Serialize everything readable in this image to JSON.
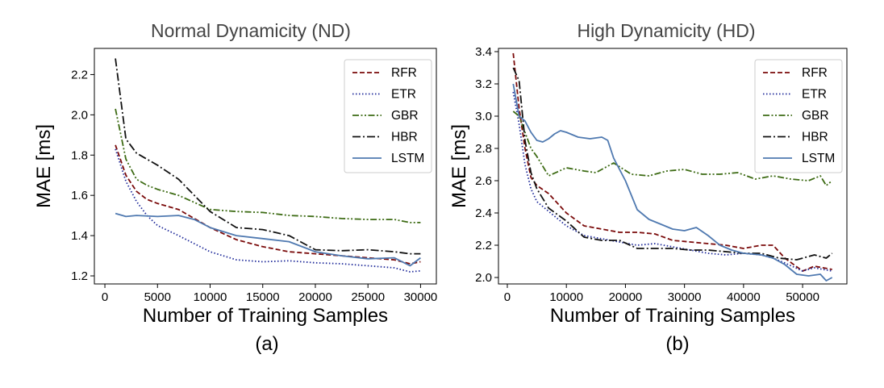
{
  "colors": {
    "RFR": "#7a0a0a",
    "ETR": "#1f2a9a",
    "GBR": "#3d6b14",
    "HBR": "#111111",
    "LSTM": "#4f79b0",
    "axis": "#000000",
    "title": "#444444"
  },
  "chart_data": [
    {
      "type": "line",
      "title": "Normal Dynamicity (ND)",
      "xlabel": "Number of Training Samples",
      "ylabel": "MAE [ms]",
      "caption": "(a)",
      "xlim": [
        -1000,
        31500
      ],
      "ylim": [
        1.16,
        2.33
      ],
      "xticks": [
        0,
        5000,
        10000,
        15000,
        20000,
        25000,
        30000
      ],
      "xtick_labels": [
        "0",
        "5000",
        "10000",
        "15000",
        "20000",
        "25000",
        "30000"
      ],
      "yticks": [
        1.2,
        1.4,
        1.6,
        1.8,
        2.0,
        2.2
      ],
      "ytick_labels": [
        "1.2",
        "1.4",
        "1.6",
        "1.8",
        "2.0",
        "2.2"
      ],
      "legend_position": "top-right",
      "grid": false,
      "series": [
        {
          "name": "RFR",
          "style": "dashed",
          "points": [
            [
              1000,
              1.85
            ],
            [
              2000,
              1.7
            ],
            [
              3000,
              1.62
            ],
            [
              4000,
              1.58
            ],
            [
              5000,
              1.56
            ],
            [
              7000,
              1.53
            ],
            [
              10000,
              1.44
            ],
            [
              12500,
              1.38
            ],
            [
              15000,
              1.345
            ],
            [
              17500,
              1.32
            ],
            [
              20000,
              1.31
            ],
            [
              22500,
              1.3
            ],
            [
              25000,
              1.29
            ],
            [
              27500,
              1.28
            ],
            [
              29000,
              1.26
            ],
            [
              30000,
              1.27
            ]
          ]
        },
        {
          "name": "ETR",
          "style": "dotted",
          "points": [
            [
              1000,
              1.83
            ],
            [
              2000,
              1.67
            ],
            [
              3000,
              1.57
            ],
            [
              4000,
              1.5
            ],
            [
              5000,
              1.45
            ],
            [
              7000,
              1.4
            ],
            [
              10000,
              1.32
            ],
            [
              12500,
              1.28
            ],
            [
              15000,
              1.27
            ],
            [
              17500,
              1.275
            ],
            [
              20000,
              1.265
            ],
            [
              22500,
              1.26
            ],
            [
              25000,
              1.25
            ],
            [
              27500,
              1.24
            ],
            [
              29000,
              1.22
            ],
            [
              30000,
              1.225
            ]
          ]
        },
        {
          "name": "GBR",
          "style": "dashdotdot",
          "points": [
            [
              1000,
              2.03
            ],
            [
              2000,
              1.78
            ],
            [
              3000,
              1.68
            ],
            [
              4000,
              1.65
            ],
            [
              5000,
              1.63
            ],
            [
              7000,
              1.6
            ],
            [
              10000,
              1.53
            ],
            [
              12500,
              1.52
            ],
            [
              15000,
              1.515
            ],
            [
              17500,
              1.5
            ],
            [
              20000,
              1.495
            ],
            [
              22500,
              1.485
            ],
            [
              25000,
              1.48
            ],
            [
              27500,
              1.48
            ],
            [
              29000,
              1.465
            ],
            [
              30000,
              1.465
            ]
          ]
        },
        {
          "name": "HBR",
          "style": "dashdot",
          "points": [
            [
              1000,
              2.28
            ],
            [
              2000,
              1.88
            ],
            [
              3000,
              1.81
            ],
            [
              4000,
              1.78
            ],
            [
              5000,
              1.75
            ],
            [
              7000,
              1.68
            ],
            [
              10000,
              1.52
            ],
            [
              12500,
              1.44
            ],
            [
              15000,
              1.43
            ],
            [
              17500,
              1.4
            ],
            [
              20000,
              1.33
            ],
            [
              22500,
              1.325
            ],
            [
              25000,
              1.33
            ],
            [
              27500,
              1.32
            ],
            [
              29000,
              1.31
            ],
            [
              30000,
              1.31
            ]
          ]
        },
        {
          "name": "LSTM",
          "style": "solid",
          "points": [
            [
              1000,
              1.51
            ],
            [
              2000,
              1.495
            ],
            [
              3000,
              1.5
            ],
            [
              5000,
              1.495
            ],
            [
              7000,
              1.5
            ],
            [
              8500,
              1.48
            ],
            [
              10000,
              1.44
            ],
            [
              12500,
              1.4
            ],
            [
              15000,
              1.385
            ],
            [
              17500,
              1.37
            ],
            [
              20000,
              1.32
            ],
            [
              22500,
              1.3
            ],
            [
              25000,
              1.285
            ],
            [
              27500,
              1.29
            ],
            [
              29000,
              1.25
            ],
            [
              30000,
              1.29
            ]
          ]
        }
      ]
    },
    {
      "type": "line",
      "title": "High Dynamicity (HD)",
      "xlabel": "Number of Training Samples",
      "ylabel": "MAE [ms]",
      "caption": "(b)",
      "xlim": [
        -1500,
        57500
      ],
      "ylim": [
        1.96,
        3.42
      ],
      "xticks": [
        0,
        10000,
        20000,
        30000,
        40000,
        50000
      ],
      "xtick_labels": [
        "0",
        "10000",
        "20000",
        "30000",
        "40000",
        "50000"
      ],
      "yticks": [
        2.0,
        2.2,
        2.4,
        2.6,
        2.8,
        3.0,
        3.2,
        3.4
      ],
      "ytick_labels": [
        "2.0",
        "2.2",
        "2.4",
        "2.6",
        "2.8",
        "3.0",
        "3.2",
        "3.4"
      ],
      "legend_position": "top-right",
      "grid": false,
      "series": [
        {
          "name": "RFR",
          "style": "dashed",
          "points": [
            [
              1000,
              3.39
            ],
            [
              2000,
              3.05
            ],
            [
              3000,
              2.8
            ],
            [
              4000,
              2.62
            ],
            [
              5000,
              2.57
            ],
            [
              7000,
              2.52
            ],
            [
              10000,
              2.4
            ],
            [
              13000,
              2.32
            ],
            [
              16000,
              2.3
            ],
            [
              19000,
              2.28
            ],
            [
              22000,
              2.28
            ],
            [
              25000,
              2.27
            ],
            [
              28000,
              2.23
            ],
            [
              31000,
              2.22
            ],
            [
              34000,
              2.21
            ],
            [
              37000,
              2.2
            ],
            [
              40000,
              2.18
            ],
            [
              43000,
              2.2
            ],
            [
              45000,
              2.2
            ],
            [
              47000,
              2.12
            ],
            [
              50000,
              2.04
            ],
            [
              52000,
              2.07
            ],
            [
              55000,
              2.05
            ]
          ]
        },
        {
          "name": "ETR",
          "style": "dotted",
          "points": [
            [
              1000,
              3.15
            ],
            [
              2000,
              2.95
            ],
            [
              3000,
              2.7
            ],
            [
              4000,
              2.55
            ],
            [
              5000,
              2.47
            ],
            [
              7000,
              2.41
            ],
            [
              10000,
              2.32
            ],
            [
              13000,
              2.26
            ],
            [
              16000,
              2.24
            ],
            [
              19000,
              2.22
            ],
            [
              22000,
              2.2
            ],
            [
              25000,
              2.21
            ],
            [
              28000,
              2.19
            ],
            [
              31000,
              2.17
            ],
            [
              34000,
              2.15
            ],
            [
              37000,
              2.14
            ],
            [
              40000,
              2.15
            ],
            [
              43000,
              2.14
            ],
            [
              45000,
              2.12
            ],
            [
              47000,
              2.09
            ],
            [
              50000,
              2.04
            ],
            [
              52000,
              2.06
            ],
            [
              55000,
              2.04
            ]
          ]
        },
        {
          "name": "GBR",
          "style": "dashdotdot",
          "points": [
            [
              1000,
              3.03
            ],
            [
              2000,
              3.0
            ],
            [
              3000,
              2.9
            ],
            [
              4000,
              2.8
            ],
            [
              5000,
              2.75
            ],
            [
              7000,
              2.63
            ],
            [
              10000,
              2.68
            ],
            [
              13000,
              2.66
            ],
            [
              15000,
              2.65
            ],
            [
              18000,
              2.71
            ],
            [
              21000,
              2.64
            ],
            [
              24000,
              2.63
            ],
            [
              27000,
              2.66
            ],
            [
              30000,
              2.67
            ],
            [
              33000,
              2.64
            ],
            [
              36000,
              2.64
            ],
            [
              39000,
              2.65
            ],
            [
              42000,
              2.61
            ],
            [
              45000,
              2.63
            ],
            [
              48000,
              2.61
            ],
            [
              51000,
              2.6
            ],
            [
              53000,
              2.63
            ],
            [
              54000,
              2.57
            ],
            [
              55000,
              2.6
            ]
          ]
        },
        {
          "name": "HBR",
          "style": "dashdot",
          "points": [
            [
              1000,
              3.3
            ],
            [
              2000,
              3.22
            ],
            [
              3000,
              2.85
            ],
            [
              4000,
              2.65
            ],
            [
              5000,
              2.55
            ],
            [
              7000,
              2.43
            ],
            [
              10000,
              2.35
            ],
            [
              13000,
              2.25
            ],
            [
              16000,
              2.23
            ],
            [
              19000,
              2.23
            ],
            [
              22000,
              2.18
            ],
            [
              25000,
              2.18
            ],
            [
              28000,
              2.18
            ],
            [
              31000,
              2.17
            ],
            [
              34000,
              2.17
            ],
            [
              37000,
              2.16
            ],
            [
              40000,
              2.15
            ],
            [
              43000,
              2.15
            ],
            [
              46000,
              2.12
            ],
            [
              49000,
              2.11
            ],
            [
              52000,
              2.14
            ],
            [
              54000,
              2.12
            ],
            [
              55000,
              2.15
            ]
          ]
        },
        {
          "name": "LSTM",
          "style": "solid",
          "points": [
            [
              1000,
              3.2
            ],
            [
              2000,
              3.0
            ],
            [
              3000,
              2.97
            ],
            [
              4000,
              2.9
            ],
            [
              5000,
              2.85
            ],
            [
              6000,
              2.84
            ],
            [
              7000,
              2.86
            ],
            [
              8000,
              2.89
            ],
            [
              9000,
              2.91
            ],
            [
              10000,
              2.9
            ],
            [
              12000,
              2.87
            ],
            [
              14000,
              2.86
            ],
            [
              16000,
              2.87
            ],
            [
              17000,
              2.85
            ],
            [
              18000,
              2.74
            ],
            [
              20000,
              2.6
            ],
            [
              22000,
              2.42
            ],
            [
              24000,
              2.36
            ],
            [
              26000,
              2.33
            ],
            [
              28000,
              2.3
            ],
            [
              30000,
              2.29
            ],
            [
              32000,
              2.31
            ],
            [
              34000,
              2.26
            ],
            [
              36000,
              2.2
            ],
            [
              38000,
              2.17
            ],
            [
              40000,
              2.15
            ],
            [
              43000,
              2.14
            ],
            [
              45000,
              2.12
            ],
            [
              47000,
              2.08
            ],
            [
              49000,
              2.02
            ],
            [
              51000,
              2.01
            ],
            [
              53000,
              2.02
            ],
            [
              54000,
              1.98
            ],
            [
              55000,
              2.0
            ]
          ]
        }
      ]
    }
  ]
}
